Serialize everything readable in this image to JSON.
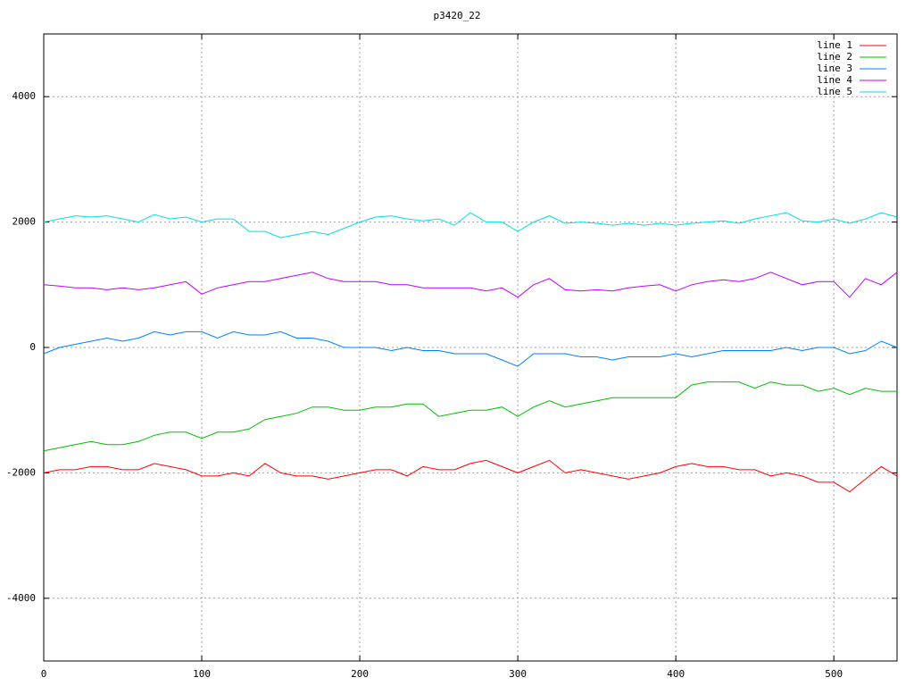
{
  "chart_data": {
    "type": "line",
    "title": "p3420_22",
    "x": [
      0,
      10,
      20,
      30,
      40,
      50,
      60,
      70,
      80,
      90,
      100,
      110,
      120,
      130,
      140,
      150,
      160,
      170,
      180,
      190,
      200,
      210,
      220,
      230,
      240,
      250,
      260,
      270,
      280,
      290,
      300,
      310,
      320,
      330,
      340,
      350,
      360,
      370,
      380,
      390,
      400,
      410,
      420,
      430,
      440,
      450,
      460,
      470,
      480,
      490,
      500,
      510,
      520,
      530,
      540
    ],
    "series": [
      {
        "name": "line 1",
        "color": "#ff0000",
        "values": [
          -2000,
          -1950,
          -1950,
          -1900,
          -1900,
          -1950,
          -1950,
          -1850,
          -1900,
          -1950,
          -2050,
          -2050,
          -2000,
          -2050,
          -1850,
          -2000,
          -2050,
          -2050,
          -2100,
          -2050,
          -2000,
          -1950,
          -1950,
          -2050,
          -1900,
          -1950,
          -1950,
          -1850,
          -1800,
          -1900,
          -2000,
          -1900,
          -1800,
          -2000,
          -1950,
          -2000,
          -2050,
          -2100,
          -2050,
          -2000,
          -1900,
          -1850,
          -1900,
          -1900,
          -1950,
          -1950,
          -2050,
          -2000,
          -2050,
          -2150,
          -2150,
          -2300,
          -2100,
          -1900,
          -2050
        ]
      },
      {
        "name": "line 2",
        "color": "#00c000",
        "values": [
          -1650,
          -1600,
          -1550,
          -1500,
          -1550,
          -1550,
          -1500,
          -1400,
          -1350,
          -1350,
          -1450,
          -1350,
          -1350,
          -1300,
          -1150,
          -1100,
          -1050,
          -950,
          -950,
          -1000,
          -1000,
          -950,
          -950,
          -900,
          -900,
          -1100,
          -1050,
          -1000,
          -1000,
          -950,
          -1100,
          -950,
          -850,
          -950,
          -900,
          -850,
          -800,
          -800,
          -800,
          -800,
          -800,
          -600,
          -550,
          -550,
          -550,
          -650,
          -550,
          -600,
          -600,
          -700,
          -650,
          -750,
          -650,
          -700,
          -700
        ]
      },
      {
        "name": "line 3",
        "color": "#0080ff",
        "values": [
          -100,
          0,
          50,
          100,
          150,
          100,
          150,
          250,
          200,
          250,
          250,
          150,
          250,
          200,
          200,
          250,
          150,
          150,
          100,
          0,
          0,
          0,
          -50,
          0,
          -50,
          -50,
          -100,
          -100,
          -100,
          -200,
          -300,
          -100,
          -100,
          -100,
          -150,
          -150,
          -200,
          -150,
          -150,
          -150,
          -100,
          -150,
          -100,
          -50,
          -50,
          -50,
          -50,
          0,
          -50,
          0,
          0,
          -100,
          -50,
          100,
          0
        ]
      },
      {
        "name": "line 4",
        "color": "#c000ff",
        "values": [
          1000,
          980,
          950,
          950,
          920,
          950,
          920,
          950,
          1000,
          1050,
          850,
          950,
          1000,
          1050,
          1050,
          1100,
          1150,
          1200,
          1100,
          1050,
          1050,
          1050,
          1000,
          1000,
          950,
          950,
          950,
          950,
          900,
          950,
          800,
          1000,
          1100,
          920,
          900,
          920,
          900,
          950,
          980,
          1000,
          900,
          1000,
          1050,
          1080,
          1050,
          1100,
          1200,
          1100,
          1000,
          1050,
          1050,
          800,
          1100,
          1000,
          1200
        ]
      },
      {
        "name": "line 5",
        "color": "#00e0e0",
        "values": [
          2000,
          2050,
          2100,
          2080,
          2100,
          2050,
          2000,
          2120,
          2050,
          2080,
          2000,
          2050,
          2050,
          1850,
          1850,
          1750,
          1800,
          1850,
          1800,
          1900,
          2000,
          2080,
          2100,
          2050,
          2020,
          2050,
          1950,
          2150,
          2000,
          2000,
          1850,
          2000,
          2100,
          1980,
          2000,
          1980,
          1950,
          1980,
          1950,
          1980,
          1950,
          1980,
          2000,
          2020,
          1980,
          2050,
          2100,
          2150,
          2020,
          2000,
          2050,
          1980,
          2050,
          2150,
          2080
        ]
      }
    ],
    "xlim": [
      0,
      540
    ],
    "ylim": [
      -5000,
      5000
    ],
    "xticks": [
      0,
      100,
      200,
      300,
      400,
      500
    ],
    "yticks": [
      -4000,
      -2000,
      0,
      2000,
      4000
    ],
    "grid": true,
    "legend": "top-right"
  }
}
